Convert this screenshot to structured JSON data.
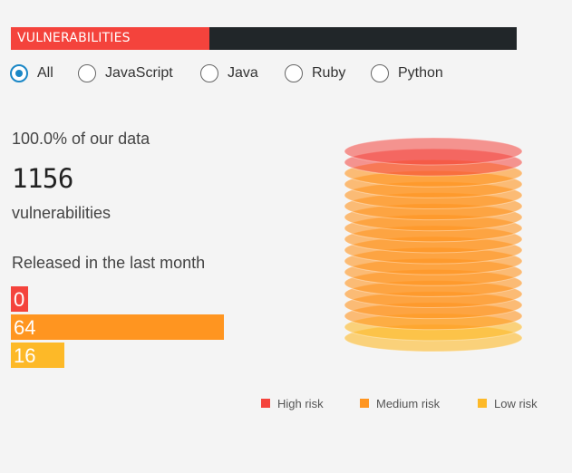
{
  "header": {
    "title": "VULNERABILITIES"
  },
  "filters": {
    "options": [
      "All",
      "JavaScript",
      "Java",
      "Ruby",
      "Python"
    ],
    "selected": "All"
  },
  "summary": {
    "share_text": "100.0% of our data",
    "count": "1156",
    "count_label": "vulnerabilities"
  },
  "released": {
    "title": "Released in the last month",
    "bars": [
      {
        "value": 0,
        "label": "0",
        "risk": "high",
        "color": "#f4433c"
      },
      {
        "value": 64,
        "label": "64",
        "risk": "medium",
        "color": "#ff9520"
      },
      {
        "value": 16,
        "label": "16",
        "risk": "low",
        "color": "#fdb928"
      }
    ]
  },
  "legend": [
    {
      "label": "High risk",
      "color": "#f4433c"
    },
    {
      "label": "Medium risk",
      "color": "#ff9520"
    },
    {
      "label": "Low risk",
      "color": "#fdb928"
    }
  ],
  "cylinder": {
    "high_layers": 2,
    "medium_layers": 14,
    "low_layers": 2,
    "colors": {
      "high": "#f4433c",
      "medium": "#ff9520",
      "low": "#fdb928"
    }
  }
}
